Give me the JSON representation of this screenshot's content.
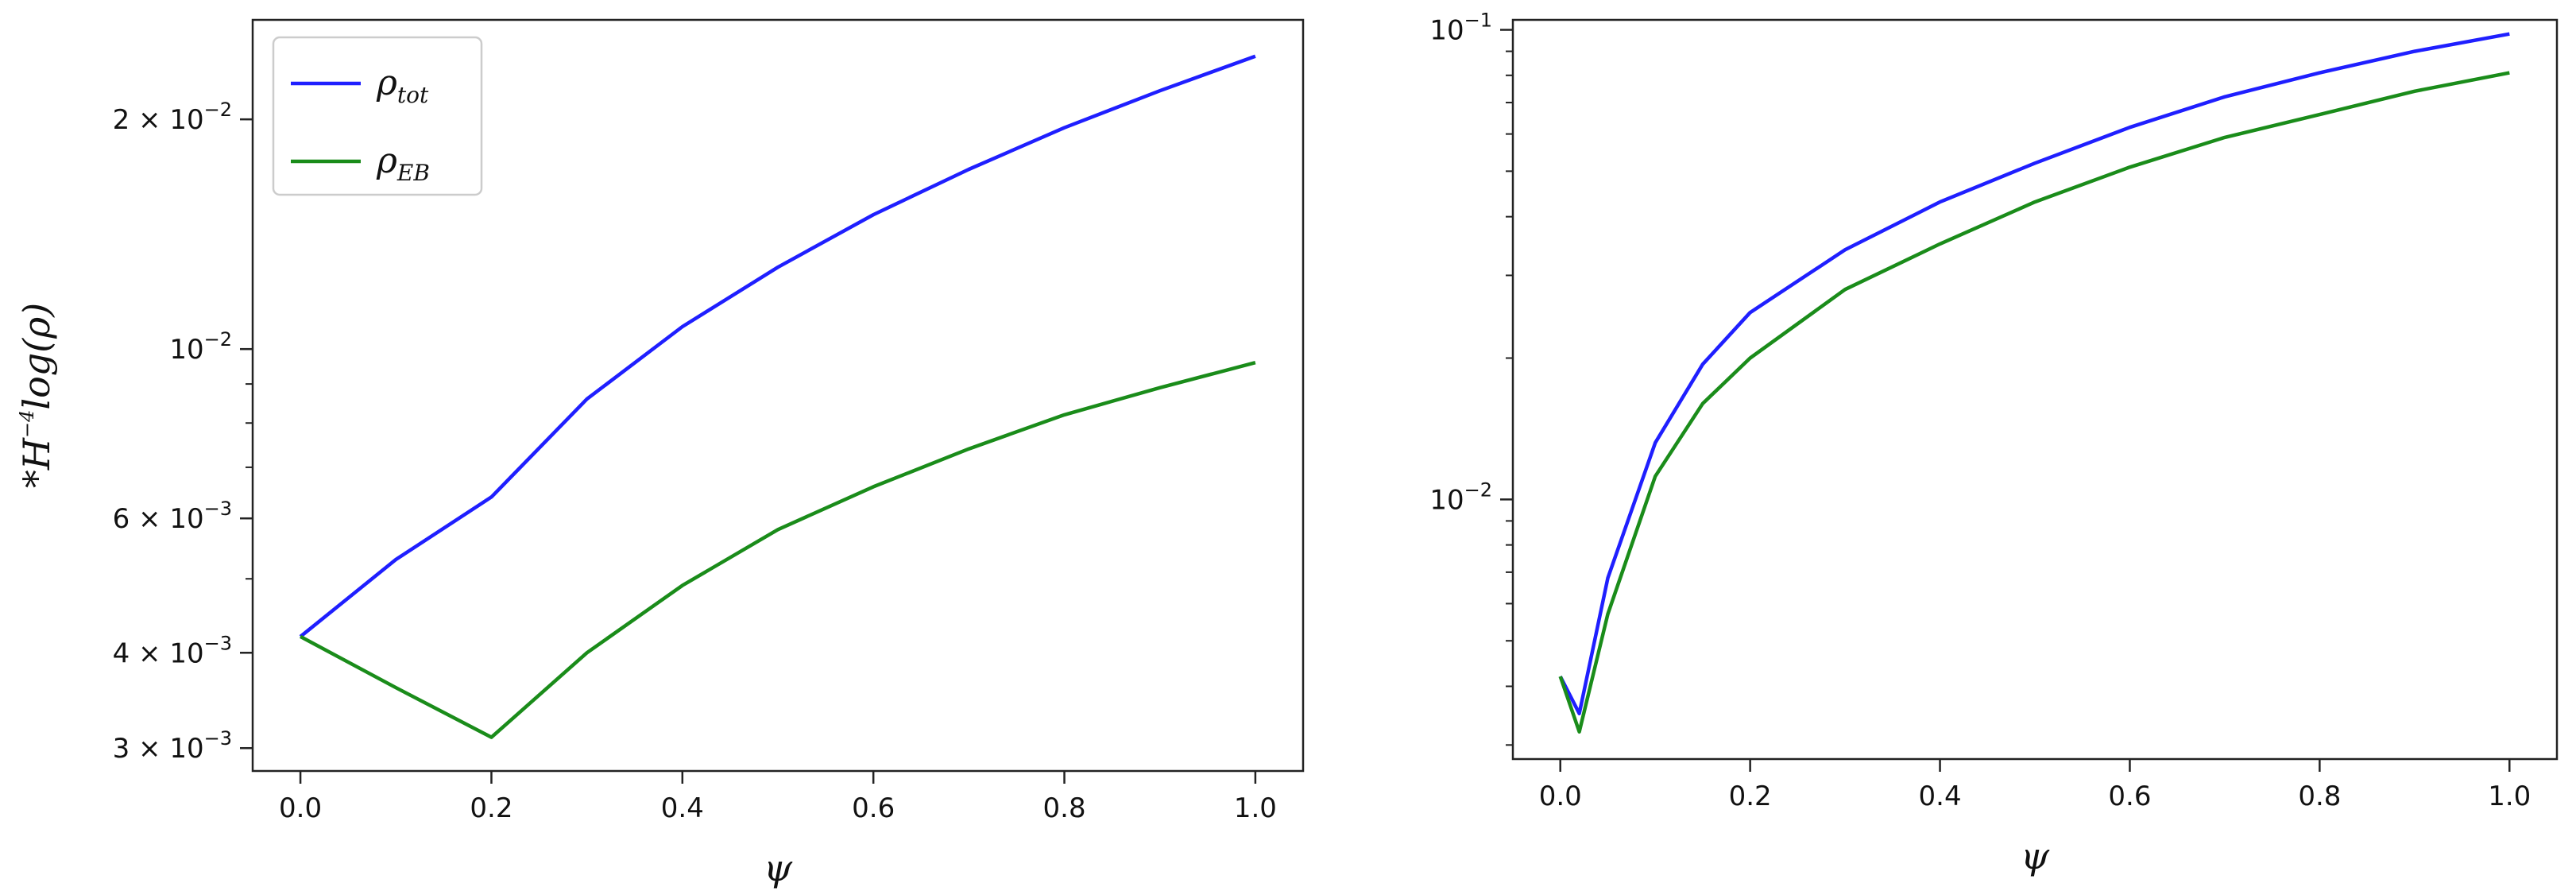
{
  "chart_data": [
    {
      "type": "line",
      "yscale": "log",
      "xlabel": "ψ",
      "ylabel": "*H^{-4}log(ρ)",
      "xlim": [
        -0.05,
        1.05
      ],
      "ylim": [
        0.0028,
        0.027
      ],
      "xticks": [
        "0.0",
        "0.2",
        "0.4",
        "0.6",
        "0.8",
        "1.0"
      ],
      "yticks": [
        {
          "value": 0.003,
          "mantissa": "3",
          "exp": "-3"
        },
        {
          "value": 0.004,
          "mantissa": "4",
          "exp": "-3"
        },
        {
          "value": 0.006,
          "mantissa": "6",
          "exp": "-3"
        },
        {
          "value": 0.01,
          "mantissa": "",
          "exp": "-2"
        },
        {
          "value": 0.02,
          "mantissa": "2",
          "exp": "-2"
        }
      ],
      "legend": {
        "position": "upper left"
      },
      "x": [
        0.0,
        0.1,
        0.2,
        0.3,
        0.4,
        0.5,
        0.6,
        0.7,
        0.8,
        0.9,
        1.0
      ],
      "series": [
        {
          "name": "tot",
          "color": "#1f1fff",
          "values": [
            0.0042,
            0.0053,
            0.0064,
            0.0086,
            0.0107,
            0.0128,
            0.015,
            0.0172,
            0.0195,
            0.0218,
            0.0242
          ]
        },
        {
          "name": "EB",
          "color": "#1a8c1a",
          "values": [
            0.0042,
            0.0036,
            0.0031,
            0.004,
            0.0049,
            0.0058,
            0.0066,
            0.0074,
            0.0082,
            0.0089,
            0.0096
          ]
        }
      ]
    },
    {
      "type": "line",
      "yscale": "log",
      "xlabel": "ψ",
      "ylabel": "",
      "xlim": [
        -0.05,
        1.05
      ],
      "ylim": [
        0.0028,
        0.105
      ],
      "xticks": [
        "0.0",
        "0.2",
        "0.4",
        "0.6",
        "0.8",
        "1.0"
      ],
      "yticks": [
        {
          "value": 0.01,
          "mantissa": "",
          "exp": "-2"
        },
        {
          "value": 0.1,
          "mantissa": "",
          "exp": "-1"
        }
      ],
      "x": [
        0.0,
        0.02,
        0.05,
        0.1,
        0.15,
        0.2,
        0.3,
        0.4,
        0.5,
        0.6,
        0.7,
        0.8,
        0.9,
        1.0
      ],
      "series": [
        {
          "name": "tot",
          "color": "#1f1fff",
          "values": [
            0.0042,
            0.0035,
            0.0068,
            0.0132,
            0.0194,
            0.025,
            0.034,
            0.043,
            0.052,
            0.062,
            0.072,
            0.081,
            0.09,
            0.098
          ]
        },
        {
          "name": "EB",
          "color": "#1a8c1a",
          "values": [
            0.0042,
            0.0032,
            0.0057,
            0.0112,
            0.016,
            0.02,
            0.028,
            0.035,
            0.043,
            0.051,
            0.059,
            0.066,
            0.074,
            0.081
          ]
        }
      ]
    }
  ]
}
